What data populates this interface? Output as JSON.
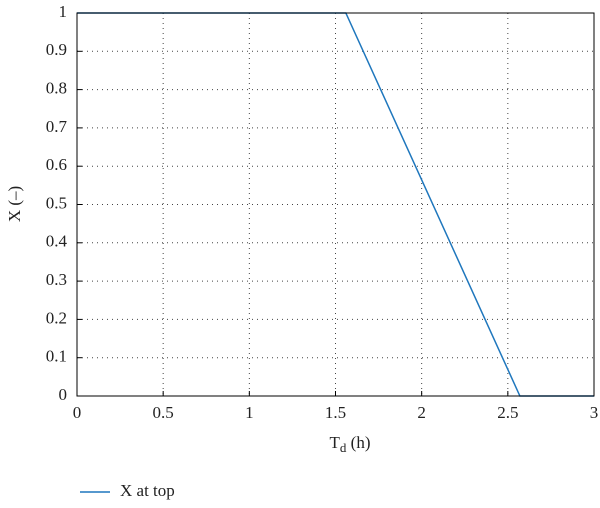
{
  "chart_data": {
    "type": "line",
    "xlabel": [
      "T",
      "d",
      " (h)"
    ],
    "ylabel": "X (–)",
    "x": [
      0,
      1.56,
      2.57,
      3
    ],
    "series": [
      {
        "name": "X at top",
        "color": "#1f77bd",
        "values": [
          1,
          1,
          0,
          0
        ]
      }
    ],
    "xlim": [
      0,
      3
    ],
    "xticks": [
      0,
      0.5,
      1,
      1.5,
      2,
      2.5,
      3
    ],
    "ylim": [
      0,
      1
    ],
    "yticks": [
      0,
      0.1,
      0.2,
      0.3,
      0.4,
      0.5,
      0.6,
      0.7,
      0.8,
      0.9,
      1
    ],
    "grid": true,
    "legend": "bottom-left"
  }
}
